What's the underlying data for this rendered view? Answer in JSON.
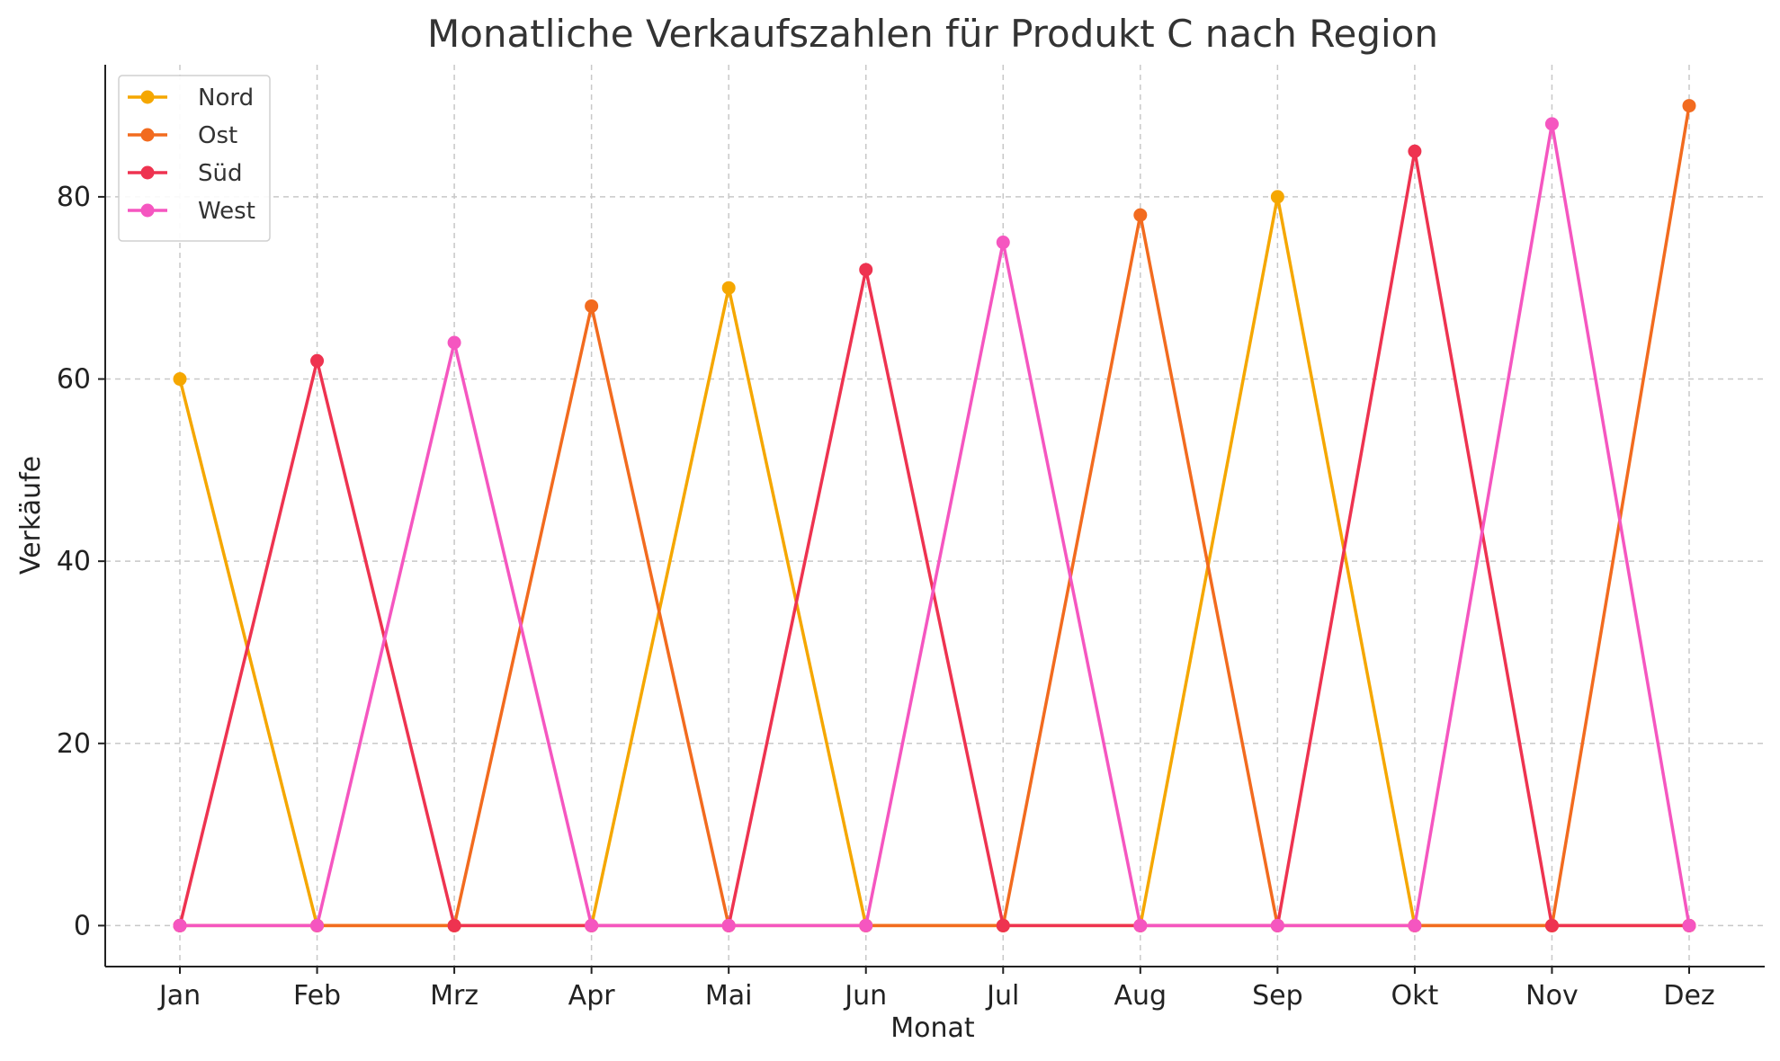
{
  "chart_data": {
    "type": "line",
    "title": "Monatliche Verkaufszahlen für Produkt C nach Region",
    "xlabel": "Monat",
    "ylabel": "Verkäufe",
    "categories": [
      "Jan",
      "Feb",
      "Mrz",
      "Apr",
      "Mai",
      "Jun",
      "Jul",
      "Aug",
      "Sep",
      "Okt",
      "Nov",
      "Dez"
    ],
    "ylim": [
      -4.5,
      94.5
    ],
    "yticks": [
      0,
      20,
      40,
      60,
      80
    ],
    "grid": true,
    "legend_position": "top-left",
    "series": [
      {
        "name": "Nord",
        "color": "#f5a700",
        "values": [
          60,
          0,
          0,
          0,
          70,
          0,
          0,
          0,
          80,
          0,
          0,
          0
        ]
      },
      {
        "name": "Ost",
        "color": "#f26b1f",
        "values": [
          0,
          0,
          0,
          68,
          0,
          0,
          0,
          78,
          0,
          0,
          0,
          90
        ]
      },
      {
        "name": "Süd",
        "color": "#ee3350",
        "values": [
          0,
          62,
          0,
          0,
          0,
          72,
          0,
          0,
          0,
          85,
          0,
          0
        ]
      },
      {
        "name": "West",
        "color": "#f556c0",
        "values": [
          0,
          0,
          64,
          0,
          0,
          0,
          75,
          0,
          0,
          0,
          88,
          0
        ]
      }
    ]
  }
}
